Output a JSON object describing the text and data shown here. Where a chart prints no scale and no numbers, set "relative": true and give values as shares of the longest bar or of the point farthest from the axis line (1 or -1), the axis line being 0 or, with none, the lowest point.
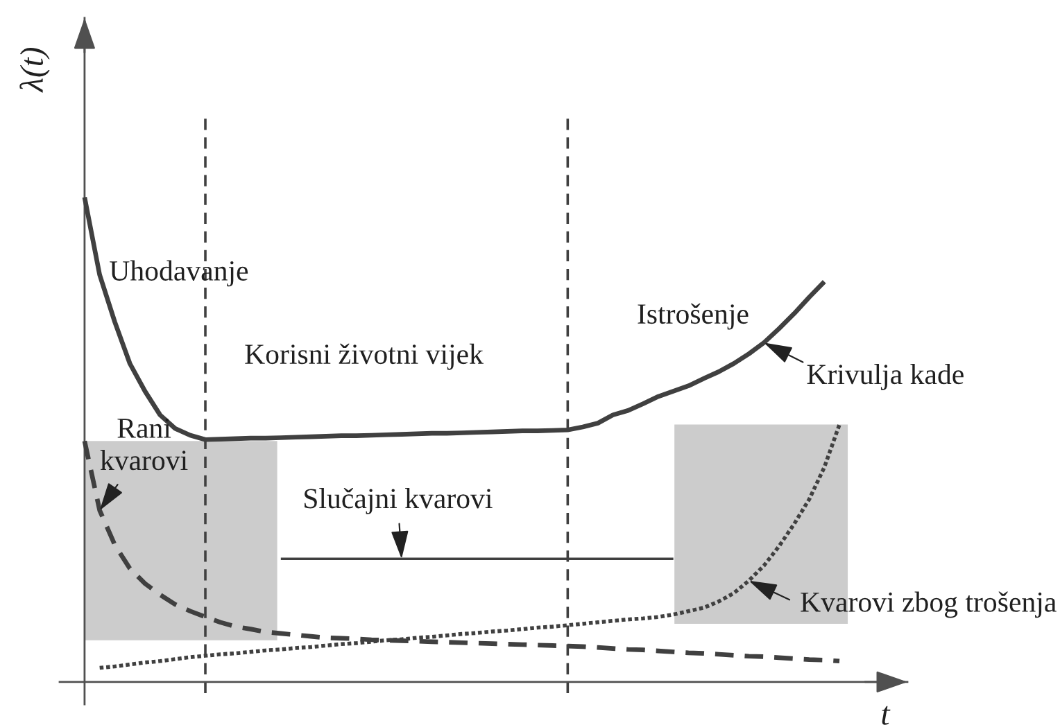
{
  "chart_data": {
    "type": "line",
    "relative": true,
    "xlabel": "t",
    "ylabel": "λ(t)",
    "categories": [
      null,
      null,
      null,
      null,
      null,
      null,
      null,
      null,
      null,
      null,
      null,
      null,
      null,
      null,
      null,
      null,
      null,
      null,
      null,
      null,
      null,
      null,
      null,
      null,
      null,
      null,
      null,
      null,
      null,
      null,
      null,
      null,
      null,
      null,
      null,
      null,
      null,
      null,
      null,
      null,
      null,
      null,
      null,
      null,
      null,
      null,
      null,
      null,
      null,
      null,
      null,
      null
    ],
    "series": [
      {
        "name": "Krivulja kade",
        "color": "#404040",
        "line_style": "solid",
        "values": [
          1.0,
          0.84,
          0.743,
          0.657,
          0.6,
          0.551,
          0.523,
          0.509,
          0.5,
          0.501,
          0.502,
          0.503,
          0.503,
          0.504,
          0.505,
          0.506,
          0.507,
          0.508,
          0.508,
          0.509,
          0.51,
          0.511,
          0.512,
          0.513,
          0.513,
          0.514,
          0.515,
          0.516,
          0.517,
          0.518,
          0.518,
          0.519,
          0.52,
          0.526,
          0.534,
          0.551,
          0.56,
          0.574,
          0.589,
          0.6,
          0.611,
          0.626,
          0.64,
          0.657,
          0.677,
          0.7,
          0.729,
          0.76,
          0.794,
          0.826,
          null,
          null
        ]
      },
      {
        "name": "Rani\nkvarovi",
        "color": "#404040",
        "line_style": "dashed",
        "values": [
          0.497,
          0.354,
          0.283,
          0.234,
          0.203,
          0.18,
          0.16,
          0.146,
          0.134,
          0.123,
          0.114,
          0.109,
          0.103,
          0.1,
          0.097,
          0.094,
          0.091,
          0.09,
          0.089,
          0.087,
          0.086,
          0.085,
          0.084,
          0.083,
          0.082,
          0.081,
          0.08,
          0.079,
          0.078,
          0.077,
          0.076,
          0.075,
          0.074,
          0.073,
          0.071,
          0.069,
          0.067,
          0.066,
          0.064,
          0.062,
          0.06,
          0.059,
          0.057,
          0.055,
          0.053,
          0.052,
          0.05,
          0.048,
          0.046,
          0.045,
          0.043,
          null
        ]
      },
      {
        "name": "Slučajni kvarovi",
        "color": "#404040",
        "line_style": "solid",
        "values": [
          null,
          null,
          null,
          null,
          null,
          null,
          null,
          null,
          null,
          null,
          null,
          null,
          null,
          0.254,
          0.254,
          0.254,
          0.254,
          0.254,
          0.254,
          0.254,
          0.254,
          0.254,
          0.254,
          0.254,
          0.254,
          0.254,
          0.254,
          0.254,
          0.254,
          0.254,
          0.254,
          0.254,
          0.254,
          0.254,
          0.254,
          0.254,
          0.254,
          0.254,
          0.254,
          0.254,
          null,
          null,
          null,
          null,
          null,
          null,
          null,
          null,
          null,
          null,
          null,
          null
        ]
      },
      {
        "name": "Kvarovi zbog trošenja",
        "color": "#404040",
        "line_style": "dotted",
        "values": [
          null,
          0.029,
          0.032,
          0.036,
          0.04,
          0.043,
          0.047,
          0.051,
          0.054,
          0.057,
          0.059,
          0.062,
          0.065,
          0.067,
          0.07,
          0.072,
          0.075,
          0.078,
          0.08,
          0.083,
          0.086,
          0.088,
          0.091,
          0.093,
          0.096,
          0.099,
          0.101,
          0.104,
          0.106,
          0.109,
          0.112,
          0.114,
          0.117,
          0.12,
          0.123,
          0.126,
          0.129,
          0.131,
          0.134,
          0.139,
          0.146,
          0.153,
          0.166,
          0.183,
          0.209,
          0.24,
          0.28,
          0.326,
          0.377,
          0.443,
          0.531,
          null
        ]
      }
    ],
    "annotations": [
      "Uhodavanje",
      "Korisni životni vijek",
      "Istrošenje"
    ]
  }
}
